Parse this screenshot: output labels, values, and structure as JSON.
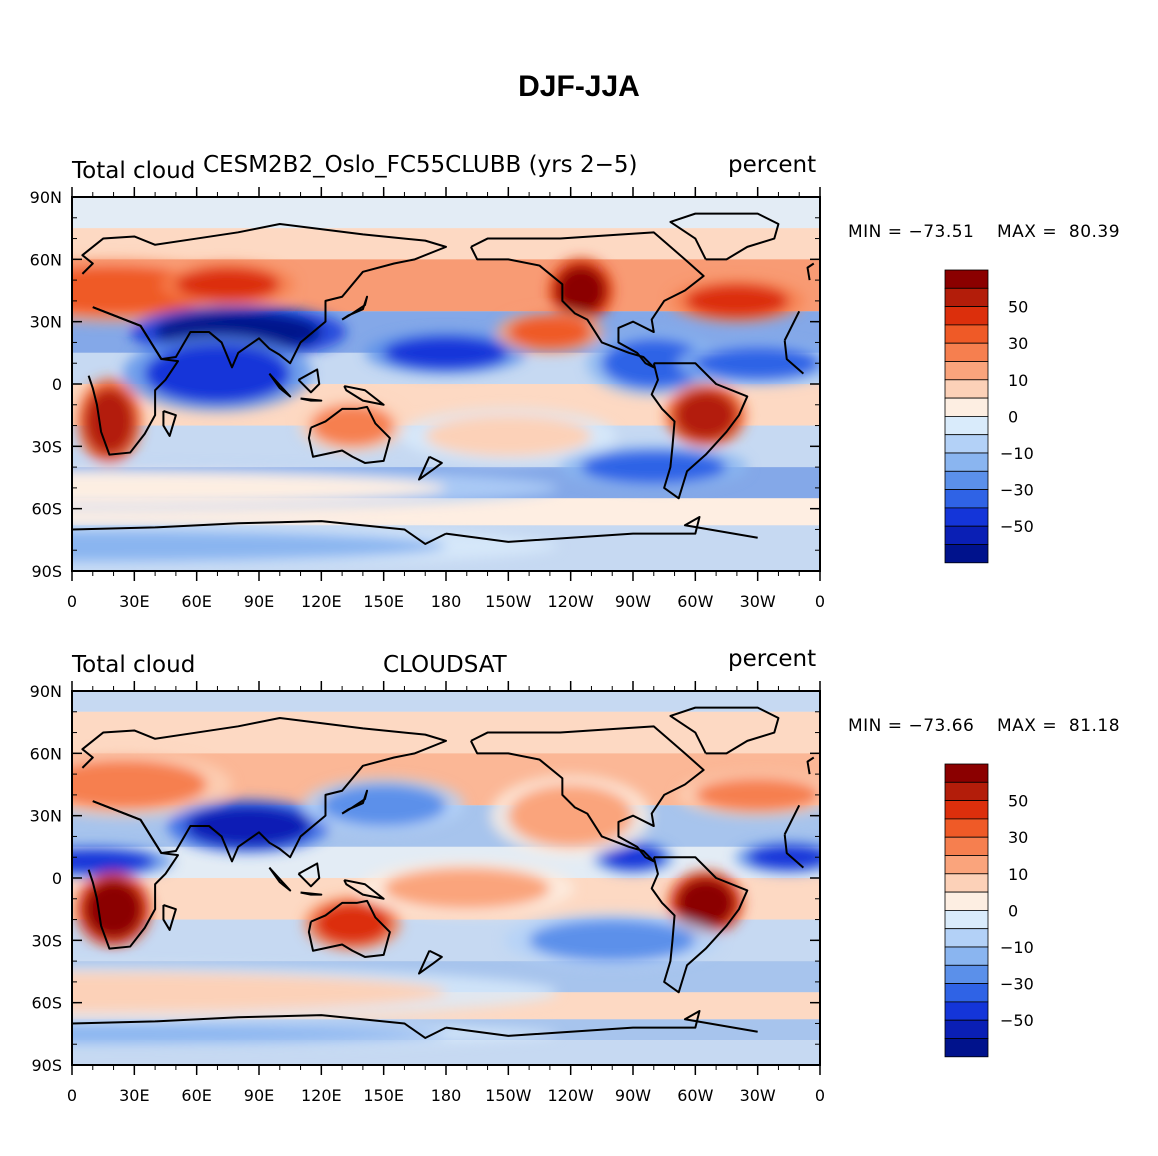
{
  "title": "DJF-JJA",
  "panels": [
    {
      "left_label": "Total cloud",
      "center_label": "CESM2B2_Oslo_FC55CLUBB (yrs 2−5)",
      "right_label": "percent",
      "min_label": "MIN = −73.51",
      "max_label": "MAX =  80.39"
    },
    {
      "left_label": "Total cloud",
      "center_label": "CLOUDSAT",
      "right_label": "percent",
      "min_label": "MIN = −73.66",
      "max_label": "MAX =  81.18"
    }
  ],
  "lat_ticks": [
    "90N",
    "60N",
    "30N",
    "0",
    "30S",
    "60S",
    "90S"
  ],
  "lon_ticks": [
    "0",
    "30E",
    "60E",
    "90E",
    "120E",
    "150E",
    "180",
    "150W",
    "120W",
    "90W",
    "60W",
    "30W",
    "0"
  ],
  "colorbar": {
    "labels": [
      "50",
      "30",
      "10",
      "0",
      "−10",
      "−30",
      "−50"
    ],
    "colors": [
      "#8b0000",
      "#b31d0a",
      "#dc2f0c",
      "#ef5a27",
      "#f67f4f",
      "#faa47c",
      "#fcd1b8",
      "#fdeee2",
      "#d9ebfb",
      "#b3d1f7",
      "#8ab5f0",
      "#5b90ea",
      "#2f63e6",
      "#1435d9",
      "#0a1fb5",
      "#00128c"
    ]
  },
  "map_fields": {
    "model": [
      {
        "lon": 20,
        "lat": 45,
        "rx": 50,
        "ry": 12,
        "level": 3
      },
      {
        "lon": 75,
        "lat": 48,
        "rx": 25,
        "ry": 8,
        "level": 2
      },
      {
        "lon": 80,
        "lat": 25,
        "rx": 40,
        "ry": 10,
        "level": 15
      },
      {
        "lon": 70,
        "lat": 5,
        "rx": 35,
        "ry": 14,
        "level": 13
      },
      {
        "lon": 180,
        "lat": 15,
        "rx": 30,
        "ry": 8,
        "level": 13
      },
      {
        "lon": -80,
        "lat": 10,
        "rx": 25,
        "ry": 12,
        "level": 12
      },
      {
        "lon": -30,
        "lat": 10,
        "rx": 30,
        "ry": 8,
        "level": 12
      },
      {
        "lon": 18,
        "lat": -18,
        "rx": 12,
        "ry": 16,
        "level": 1
      },
      {
        "lon": -55,
        "lat": -15,
        "rx": 15,
        "ry": 12,
        "level": 1
      },
      {
        "lon": -115,
        "lat": 45,
        "rx": 12,
        "ry": 12,
        "level": 0
      },
      {
        "lon": -40,
        "lat": 40,
        "rx": 25,
        "ry": 8,
        "level": 2
      },
      {
        "lon": 135,
        "lat": -20,
        "rx": 20,
        "ry": 10,
        "level": 4
      },
      {
        "lon": -150,
        "lat": -25,
        "rx": 40,
        "ry": 10,
        "level": 6
      },
      {
        "lon": -80,
        "lat": -40,
        "rx": 35,
        "ry": 8,
        "level": 12
      },
      {
        "lon": 0,
        "lat": -78,
        "rx": 180,
        "ry": 8,
        "level": 10
      },
      {
        "lon": 0,
        "lat": -50,
        "rx": 180,
        "ry": 8,
        "level": 7
      },
      {
        "lon": -130,
        "lat": 25,
        "rx": 20,
        "ry": 8,
        "level": 3
      }
    ],
    "obs": [
      {
        "lon": 25,
        "lat": 45,
        "rx": 40,
        "ry": 12,
        "level": 4
      },
      {
        "lon": 85,
        "lat": 25,
        "rx": 30,
        "ry": 10,
        "level": 14
      },
      {
        "lon": 10,
        "lat": 8,
        "rx": 30,
        "ry": 6,
        "level": 13
      },
      {
        "lon": -90,
        "lat": 10,
        "rx": 15,
        "ry": 6,
        "level": 13
      },
      {
        "lon": -15,
        "lat": 10,
        "rx": 20,
        "ry": 6,
        "level": 13
      },
      {
        "lon": 20,
        "lat": -15,
        "rx": 14,
        "ry": 14,
        "level": 0
      },
      {
        "lon": -55,
        "lat": -12,
        "rx": 14,
        "ry": 12,
        "level": 0
      },
      {
        "lon": 135,
        "lat": -22,
        "rx": 18,
        "ry": 10,
        "level": 2
      },
      {
        "lon": -170,
        "lat": -5,
        "rx": 40,
        "ry": 10,
        "level": 5
      },
      {
        "lon": -120,
        "lat": 30,
        "rx": 30,
        "ry": 15,
        "level": 5
      },
      {
        "lon": -100,
        "lat": -30,
        "rx": 40,
        "ry": 10,
        "level": 11
      },
      {
        "lon": 0,
        "lat": -75,
        "rx": 180,
        "ry": 5,
        "level": 10
      },
      {
        "lon": 0,
        "lat": -55,
        "rx": 180,
        "ry": 10,
        "level": 6
      },
      {
        "lon": -30,
        "lat": 40,
        "rx": 30,
        "ry": 8,
        "level": 4
      },
      {
        "lon": 150,
        "lat": 35,
        "rx": 30,
        "ry": 10,
        "level": 11
      }
    ]
  }
}
